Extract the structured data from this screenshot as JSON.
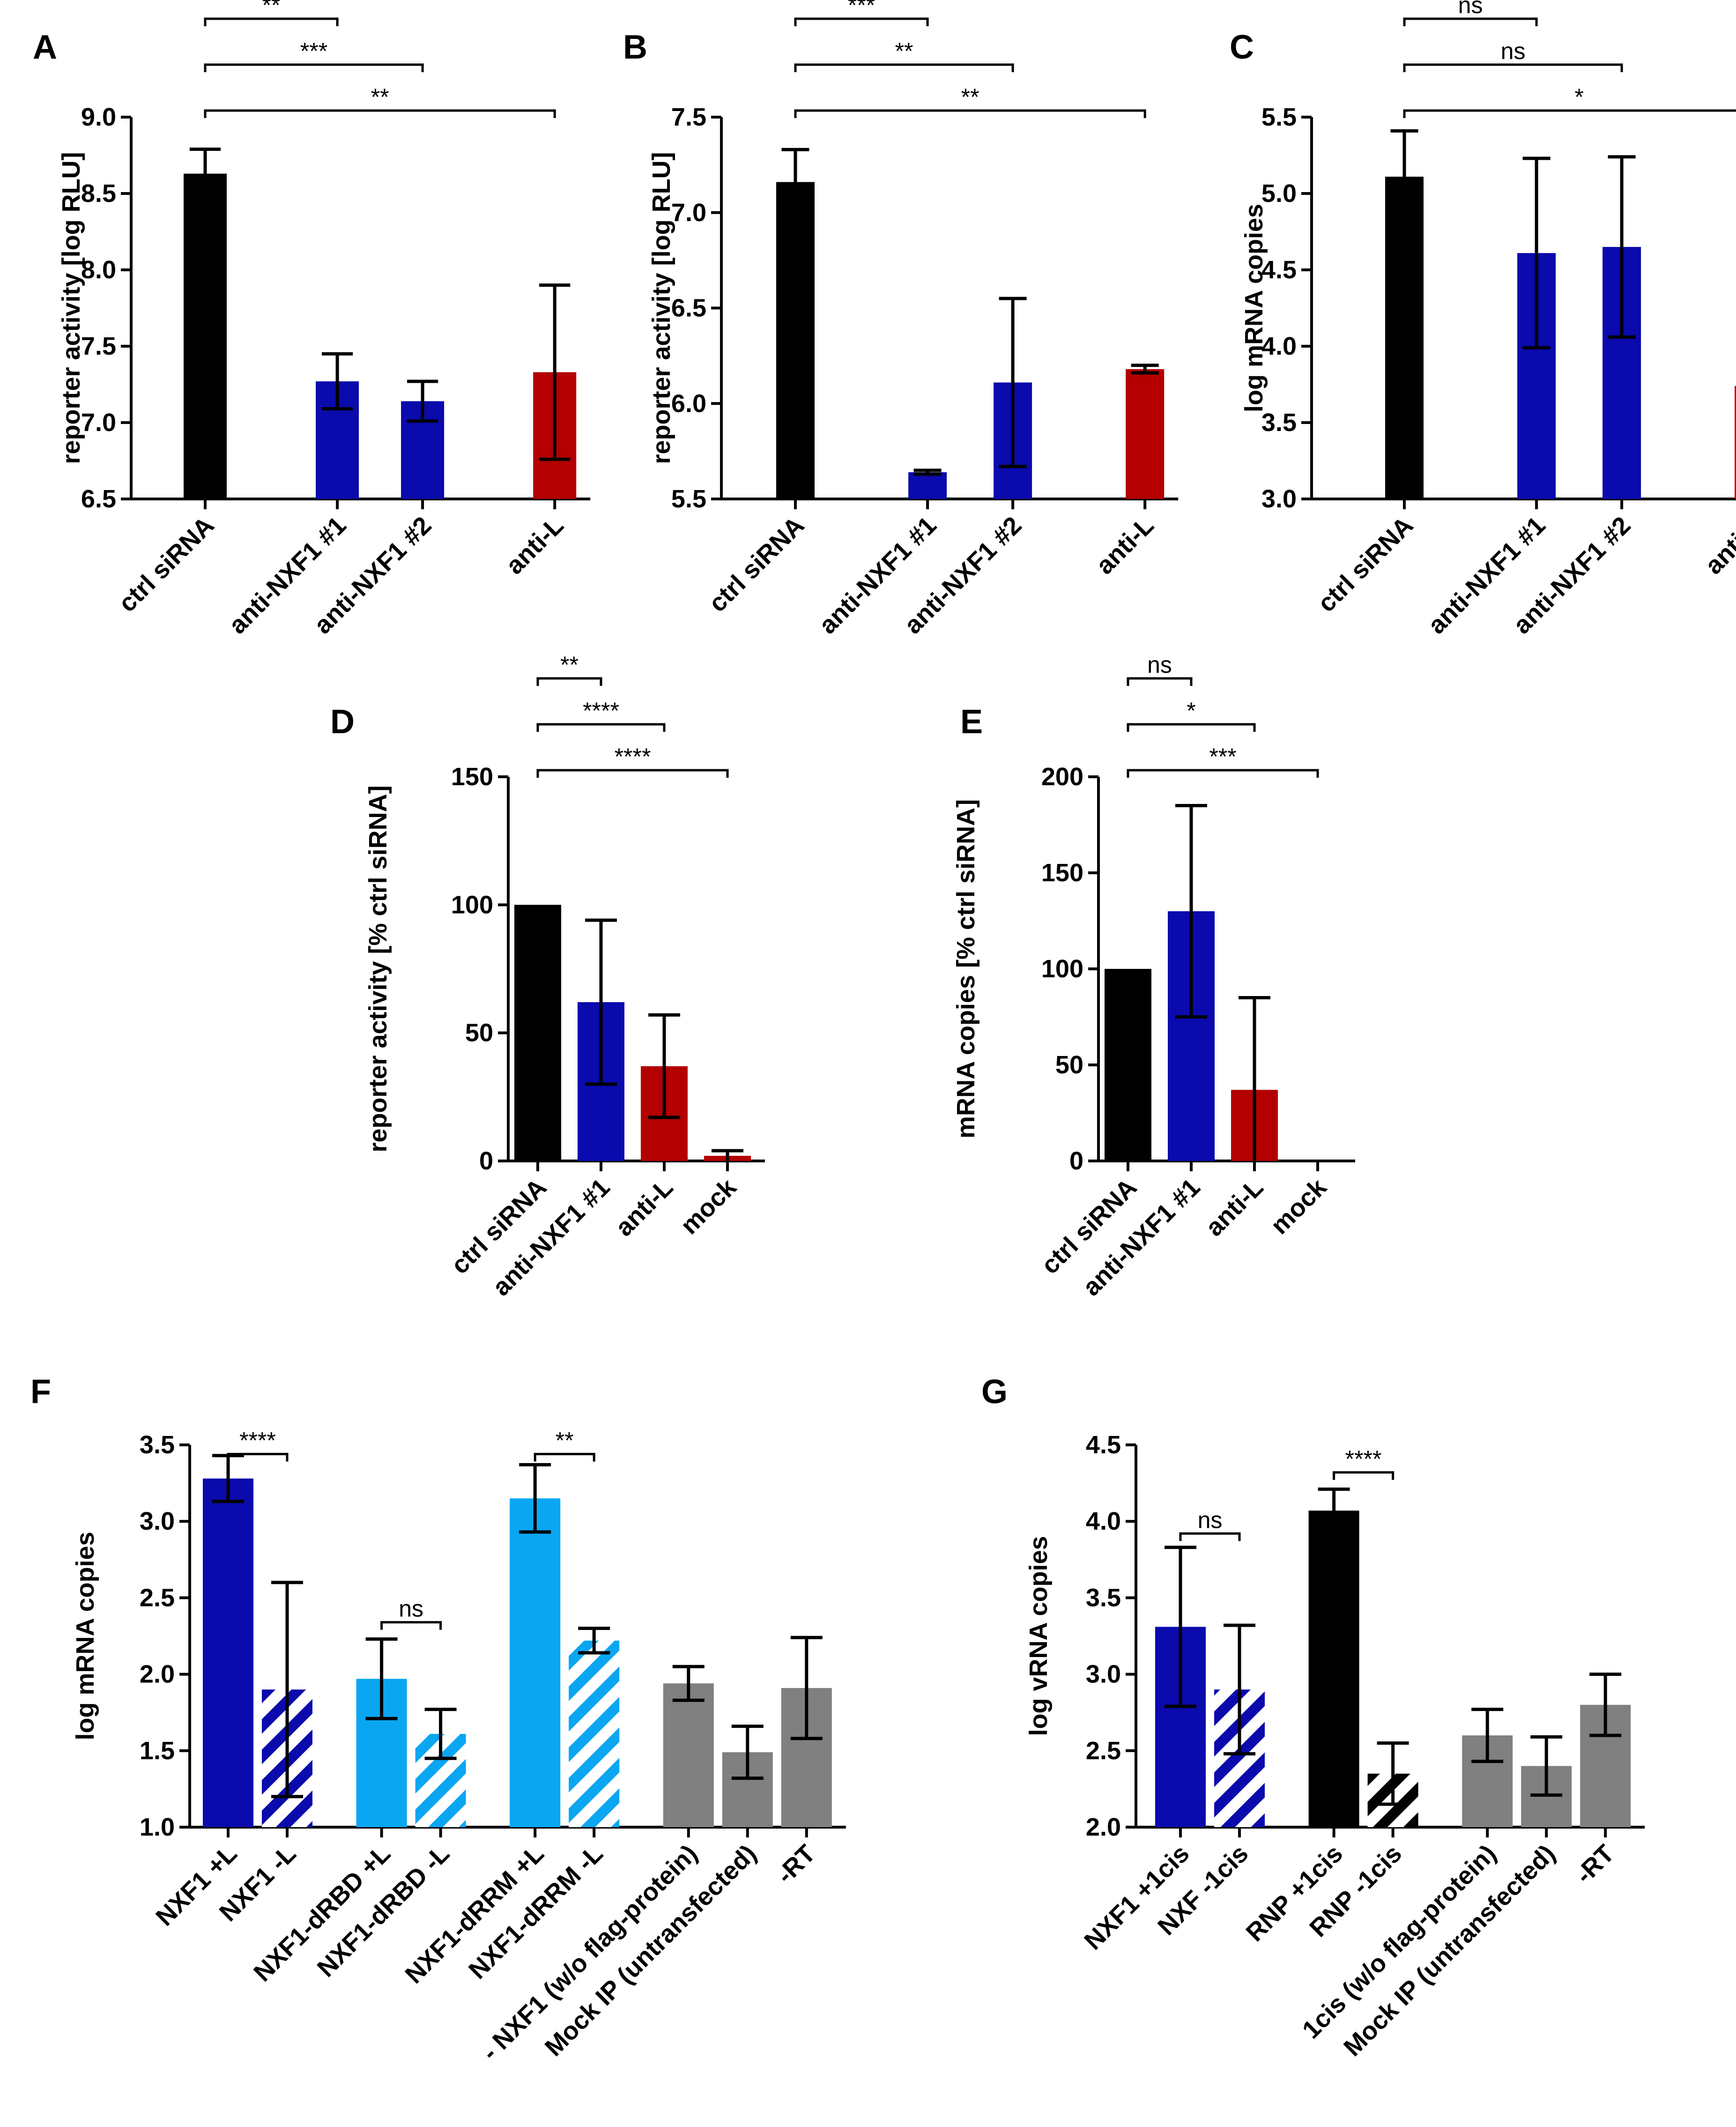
{
  "colors": {
    "black": "#000000",
    "blue": "#0a0aad",
    "red": "#b40000",
    "light_blue": "#0aa6f2",
    "gray": "#808080"
  },
  "chart_data": [
    {
      "id": "A",
      "panel_label": "A",
      "type": "bar",
      "ylabel": "reporter activity [log RLU]",
      "ylim": [
        6.5,
        9.0
      ],
      "yticks": [
        6.5,
        7.0,
        7.5,
        8.0,
        8.5,
        9.0
      ],
      "ytick_labels": [
        "6.5",
        "7.0",
        "7.5",
        "8.0",
        "8.5",
        "9.0"
      ],
      "bars": [
        {
          "label": "ctrl siRNA",
          "value": 8.63,
          "err": 0.16,
          "color": "black",
          "pos": 0
        },
        {
          "label": "anti-NXF1 #1",
          "value": 7.27,
          "err": 0.18,
          "color": "blue",
          "pos": 1.55
        },
        {
          "label": "anti-NXF1 #2",
          "value": 7.14,
          "err": 0.13,
          "color": "blue",
          "pos": 2.55
        },
        {
          "label": "anti-L",
          "value": 7.33,
          "err": 0.57,
          "color": "red",
          "pos": 4.1
        }
      ],
      "comparisons": [
        {
          "from": 0,
          "to": 1,
          "label": "**"
        },
        {
          "from": 0,
          "to": 2,
          "label": "***"
        },
        {
          "from": 0,
          "to": 3,
          "label": "**"
        }
      ]
    },
    {
      "id": "B",
      "panel_label": "B",
      "type": "bar",
      "ylabel": "reporter activity [log RLU]",
      "ylim": [
        5.5,
        7.5
      ],
      "yticks": [
        5.5,
        6.0,
        6.5,
        7.0,
        7.5
      ],
      "ytick_labels": [
        "5.5",
        "6.0",
        "6.5",
        "7.0",
        "7.5"
      ],
      "bars": [
        {
          "label": "ctrl siRNA",
          "value": 7.16,
          "err": 0.17,
          "color": "black",
          "pos": 0
        },
        {
          "label": "anti-NXF1 #1",
          "value": 5.64,
          "err": 0.01,
          "color": "blue",
          "pos": 1.55
        },
        {
          "label": "anti-NXF1 #2",
          "value": 6.11,
          "err": 0.44,
          "color": "blue",
          "pos": 2.55
        },
        {
          "label": "anti-L",
          "value": 6.18,
          "err": 0.02,
          "color": "red",
          "pos": 4.1
        }
      ],
      "comparisons": [
        {
          "from": 0,
          "to": 1,
          "label": "***"
        },
        {
          "from": 0,
          "to": 2,
          "label": "**"
        },
        {
          "from": 0,
          "to": 3,
          "label": "**"
        }
      ]
    },
    {
      "id": "C",
      "panel_label": "C",
      "type": "bar",
      "ylabel": "log mRNA copies",
      "ylim": [
        3.0,
        5.5
      ],
      "yticks": [
        3.0,
        3.5,
        4.0,
        4.5,
        5.0,
        5.5
      ],
      "ytick_labels": [
        "3.0",
        "3.5",
        "4.0",
        "4.5",
        "5.0",
        "5.5"
      ],
      "bars": [
        {
          "label": "ctrl siRNA",
          "value": 5.11,
          "err": 0.3,
          "color": "black",
          "pos": 0
        },
        {
          "label": "anti-NXF1 #1",
          "value": 4.61,
          "err": 0.62,
          "color": "blue",
          "pos": 1.55
        },
        {
          "label": "anti-NXF1 #2",
          "value": 4.65,
          "err": 0.59,
          "color": "blue",
          "pos": 2.55
        },
        {
          "label": "anti-L",
          "value": 3.74,
          "err": 0.26,
          "color": "red",
          "pos": 4.1
        }
      ],
      "comparisons": [
        {
          "from": 0,
          "to": 1,
          "label": "ns"
        },
        {
          "from": 0,
          "to": 2,
          "label": "ns"
        },
        {
          "from": 0,
          "to": 3,
          "label": "*"
        }
      ]
    },
    {
      "id": "D",
      "panel_label": "D",
      "type": "bar",
      "ylabel": "reporter activity [% ctrl siRNA]",
      "ylim": [
        0,
        150
      ],
      "yticks": [
        0,
        50,
        100,
        150
      ],
      "ytick_labels": [
        "0",
        "50",
        "100",
        "150"
      ],
      "bars": [
        {
          "label": "ctrl siRNA",
          "value": 100,
          "err": 0,
          "color": "black",
          "pos": 0
        },
        {
          "label": "anti-NXF1 #1",
          "value": 62,
          "err": 32,
          "color": "blue",
          "pos": 1
        },
        {
          "label": "anti-L",
          "value": 37,
          "err": 20,
          "color": "red",
          "pos": 2
        },
        {
          "label": "mock",
          "value": 2,
          "err": 2,
          "color": "red",
          "pos": 3
        }
      ],
      "comparisons": [
        {
          "from": 0,
          "to": 1,
          "label": "**"
        },
        {
          "from": 0,
          "to": 2,
          "label": "****"
        },
        {
          "from": 0,
          "to": 3,
          "label": "****"
        }
      ]
    },
    {
      "id": "E",
      "panel_label": "E",
      "type": "bar",
      "ylabel": "mRNA copies [% ctrl siRNA]",
      "ylim": [
        0,
        200
      ],
      "yticks": [
        0,
        50,
        100,
        150,
        200
      ],
      "ytick_labels": [
        "0",
        "50",
        "100",
        "150",
        "200"
      ],
      "bars": [
        {
          "label": "ctrl siRNA",
          "value": 100,
          "err": 0,
          "color": "black",
          "pos": 0
        },
        {
          "label": "anti-NXF1 #1",
          "value": 130,
          "err": 55,
          "color": "blue",
          "pos": 1
        },
        {
          "label": "anti-L",
          "value": 37,
          "err": 48,
          "color": "red",
          "pos": 2
        },
        {
          "label": "mock",
          "value": 0,
          "err": 0,
          "color": "red",
          "pos": 3
        }
      ],
      "comparisons": [
        {
          "from": 0,
          "to": 1,
          "label": "ns"
        },
        {
          "from": 0,
          "to": 2,
          "label": "*"
        },
        {
          "from": 0,
          "to": 3,
          "label": "***"
        }
      ]
    },
    {
      "id": "F",
      "panel_label": "F",
      "type": "bar",
      "ylabel": "log mRNA copies",
      "ylim": [
        1.0,
        3.5
      ],
      "yticks": [
        1.0,
        1.5,
        2.0,
        2.5,
        3.0,
        3.5
      ],
      "ytick_labels": [
        "1.0",
        "1.5",
        "2.0",
        "2.5",
        "3.0",
        "3.5"
      ],
      "bars": [
        {
          "label": "NXF1 +L",
          "value": 3.28,
          "err": 0.15,
          "color": "blue",
          "hatch": false,
          "pos": 0
        },
        {
          "label": "NXF1 -L",
          "value": 1.9,
          "err": 0.7,
          "color": "blue",
          "hatch": true,
          "pos": 1
        },
        {
          "label": "NXF1-dRBD +L",
          "value": 1.97,
          "err": 0.26,
          "color": "light_blue",
          "hatch": false,
          "pos": 2.6
        },
        {
          "label": "NXF1-dRBD -L",
          "value": 1.61,
          "err": 0.16,
          "color": "light_blue",
          "hatch": true,
          "pos": 3.6
        },
        {
          "label": "NXF1-dRRM +L",
          "value": 3.15,
          "err": 0.22,
          "color": "light_blue",
          "hatch": false,
          "pos": 5.2
        },
        {
          "label": "NXF1-dRRM -L",
          "value": 2.22,
          "err": 0.08,
          "color": "light_blue",
          "hatch": true,
          "pos": 6.2
        },
        {
          "label": "- NXF1 (w/o flag-protein)",
          "value": 1.94,
          "err": 0.11,
          "color": "gray",
          "hatch": false,
          "pos": 7.8
        },
        {
          "label": "Mock IP (untransfected)",
          "value": 1.49,
          "err": 0.17,
          "color": "gray",
          "hatch": false,
          "pos": 8.8
        },
        {
          "label": "-RT",
          "value": 1.91,
          "err": 0.33,
          "color": "gray",
          "hatch": false,
          "pos": 9.8
        }
      ],
      "comparisons": [
        {
          "from": 0,
          "to": 1,
          "label": "****",
          "y": 3.44
        },
        {
          "from": 2,
          "to": 3,
          "label": "ns",
          "y": 2.34
        },
        {
          "from": 4,
          "to": 5,
          "label": "**",
          "y": 3.44
        }
      ]
    },
    {
      "id": "G",
      "panel_label": "G",
      "type": "bar",
      "ylabel": "log vRNA copies",
      "ylim": [
        2.0,
        4.5
      ],
      "yticks": [
        2.0,
        2.5,
        3.0,
        3.5,
        4.0,
        4.5
      ],
      "ytick_labels": [
        "2.0",
        "2.5",
        "3.0",
        "3.5",
        "4.0",
        "4.5"
      ],
      "bars": [
        {
          "label": "NXF1 +1cis",
          "value": 3.31,
          "err": 0.52,
          "color": "blue",
          "hatch": false,
          "pos": 0
        },
        {
          "label": "NXF -1cis",
          "value": 2.9,
          "err": 0.42,
          "color": "blue",
          "hatch": true,
          "pos": 1
        },
        {
          "label": "RNP +1cis",
          "value": 4.07,
          "err": 0.14,
          "color": "black",
          "hatch": false,
          "pos": 2.6
        },
        {
          "label": "RNP -1cis",
          "value": 2.35,
          "err": 0.2,
          "color": "black",
          "hatch": true,
          "pos": 3.6
        },
        {
          "label": "1cis (w/o flag-protein)",
          "value": 2.6,
          "err": 0.17,
          "color": "gray",
          "hatch": false,
          "pos": 5.2
        },
        {
          "label": "Mock IP (untransfected)",
          "value": 2.4,
          "err": 0.19,
          "color": "gray",
          "hatch": false,
          "pos": 6.2
        },
        {
          "label": "-RT",
          "value": 2.8,
          "err": 0.2,
          "color": "gray",
          "hatch": false,
          "pos": 7.2
        }
      ],
      "comparisons": [
        {
          "from": 0,
          "to": 1,
          "label": "ns",
          "y": 3.92
        },
        {
          "from": 2,
          "to": 3,
          "label": "****",
          "y": 4.32
        }
      ]
    }
  ]
}
